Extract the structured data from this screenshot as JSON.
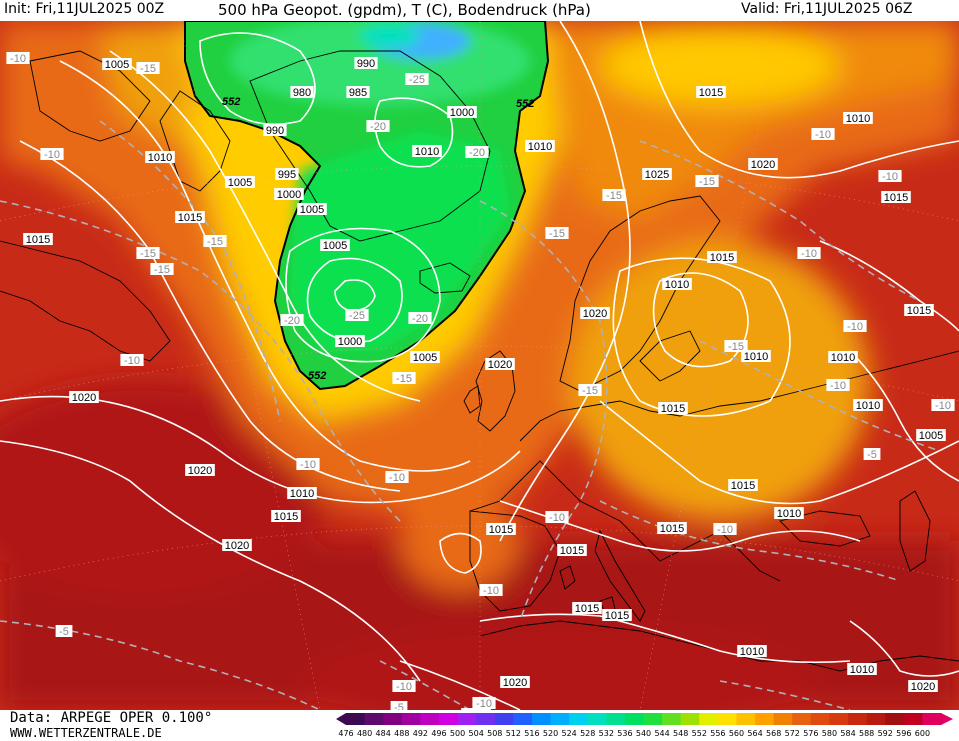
{
  "header": {
    "init": "Init: Fri,11JUL2025 00Z",
    "title": "500 hPa Geopot. (gpdm), T (C), Bodendruck (hPa)",
    "valid": "Valid: Fri,11JUL2025 06Z"
  },
  "footer": {
    "data_source": "Data: ARPEGE OPER 0.100°",
    "website": "WWW.WETTERZENTRALE.DE"
  },
  "colorbar": {
    "labels": [
      "476",
      "480",
      "484",
      "488",
      "492",
      "496",
      "500",
      "504",
      "508",
      "512",
      "516",
      "520",
      "524",
      "528",
      "532",
      "536",
      "540",
      "544",
      "548",
      "552",
      "556",
      "560",
      "564",
      "568",
      "572",
      "576",
      "580",
      "584",
      "588",
      "592",
      "596",
      "600"
    ],
    "colors": [
      "#3d0a52",
      "#5c0a6e",
      "#800080",
      "#a000a0",
      "#c000c0",
      "#d000e0",
      "#a020f0",
      "#7030f0",
      "#4040f0",
      "#2060ff",
      "#0090ff",
      "#00b0ff",
      "#00d0f0",
      "#00e0c0",
      "#00e090",
      "#00e060",
      "#20e040",
      "#60e020",
      "#a0e000",
      "#e0f000",
      "#ffe000",
      "#ffc000",
      "#ffa000",
      "#f08000",
      "#e86010",
      "#e04a10",
      "#d83a10",
      "#c82810",
      "#b81a10",
      "#a01010",
      "#c00020",
      "#e00060"
    ]
  },
  "map": {
    "isobar_labels": [
      {
        "text": "1005"
      },
      {
        "text": "990"
      },
      {
        "text": "985"
      },
      {
        "text": "980"
      },
      {
        "text": "990"
      },
      {
        "text": "995"
      },
      {
        "text": "1000"
      },
      {
        "text": "1005"
      },
      {
        "text": "1000"
      },
      {
        "text": "1010"
      },
      {
        "text": "1005"
      },
      {
        "text": "1010"
      },
      {
        "text": "1005"
      },
      {
        "text": "1015"
      },
      {
        "text": "1015"
      },
      {
        "text": "1000"
      },
      {
        "text": "1005"
      },
      {
        "text": "1020"
      },
      {
        "text": "1020"
      },
      {
        "text": "1020"
      },
      {
        "text": "1020"
      },
      {
        "text": "1010"
      },
      {
        "text": "1015"
      },
      {
        "text": "1020"
      },
      {
        "text": "1015"
      },
      {
        "text": "1025"
      },
      {
        "text": "1020"
      },
      {
        "text": "1010"
      },
      {
        "text": "1015"
      },
      {
        "text": "1010"
      },
      {
        "text": "1010"
      },
      {
        "text": "1015"
      },
      {
        "text": "1010"
      },
      {
        "text": "1015"
      },
      {
        "text": "1015"
      },
      {
        "text": "1010"
      },
      {
        "text": "1015"
      },
      {
        "text": "1010"
      },
      {
        "text": "1015"
      },
      {
        "text": "1010"
      },
      {
        "text": "1005"
      },
      {
        "text": "1015"
      },
      {
        "text": "1015"
      },
      {
        "text": "1015"
      },
      {
        "text": "1010"
      },
      {
        "text": "1010"
      },
      {
        "text": "1020"
      },
      {
        "text": "1020"
      },
      {
        "text": "1015"
      },
      {
        "text": "1015"
      }
    ],
    "temp_labels": [
      {
        "text": "-10"
      },
      {
        "text": "-15"
      },
      {
        "text": "-10"
      },
      {
        "text": "-15"
      },
      {
        "text": "-15"
      },
      {
        "text": "-15"
      },
      {
        "text": "-10"
      },
      {
        "text": "-25"
      },
      {
        "text": "-20"
      },
      {
        "text": "-20"
      },
      {
        "text": "-20"
      },
      {
        "text": "-25"
      },
      {
        "text": "-20"
      },
      {
        "text": "-15"
      },
      {
        "text": "-10"
      },
      {
        "text": "-10"
      },
      {
        "text": "-15"
      },
      {
        "text": "-15"
      },
      {
        "text": "-15"
      },
      {
        "text": "-10"
      },
      {
        "text": "-10"
      },
      {
        "text": "-15"
      },
      {
        "text": "-10"
      },
      {
        "text": "-10"
      },
      {
        "text": "-15"
      },
      {
        "text": "-10"
      },
      {
        "text": "-10"
      },
      {
        "text": "-5"
      },
      {
        "text": "-10"
      },
      {
        "text": "-10"
      },
      {
        "text": "-10"
      },
      {
        "text": "-5"
      },
      {
        "text": "-10"
      },
      {
        "text": "-10"
      },
      {
        "text": "-10"
      },
      {
        "text": "-5"
      }
    ],
    "contour_552_labels": [
      {
        "text": "552"
      },
      {
        "text": "552"
      },
      {
        "text": "552"
      }
    ]
  }
}
